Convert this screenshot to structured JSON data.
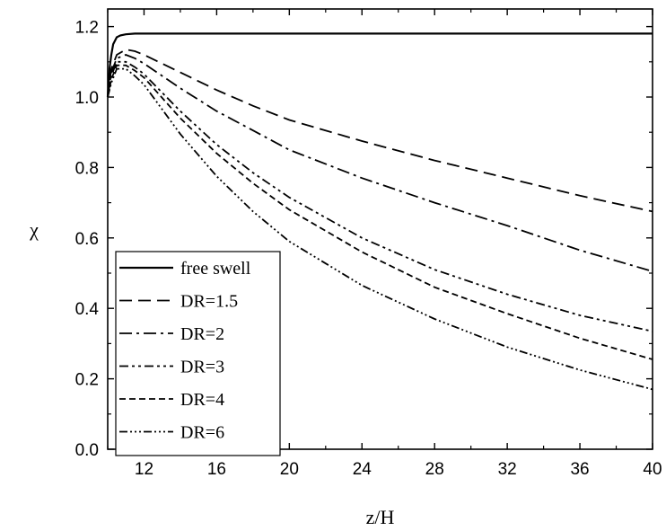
{
  "chart_data": {
    "type": "line",
    "title": "",
    "xlabel": "z/H",
    "ylabel": "χ",
    "xlim": [
      10,
      40
    ],
    "ylim": [
      0.0,
      1.25
    ],
    "xticks": [
      12,
      16,
      20,
      24,
      28,
      32,
      36,
      40
    ],
    "xtick_labels": [
      "12",
      "16",
      "20",
      "24",
      "28",
      "32",
      "36",
      "40"
    ],
    "yticks": [
      0.0,
      0.2,
      0.4,
      0.6,
      0.8,
      1.0,
      1.2
    ],
    "ytick_labels": [
      "0.0",
      "0.2",
      "0.4",
      "0.6",
      "0.8",
      "1.0",
      "1.2"
    ],
    "grid": false,
    "legend_position": "bottom-left",
    "series": [
      {
        "name": "free swell",
        "dash": "solid",
        "x": [
          10.0,
          10.1,
          10.2,
          10.3,
          10.5,
          10.7,
          11.0,
          11.5,
          12,
          16,
          20,
          24,
          28,
          32,
          36,
          40
        ],
        "y": [
          1.0,
          1.08,
          1.12,
          1.15,
          1.17,
          1.175,
          1.178,
          1.18,
          1.18,
          1.18,
          1.18,
          1.18,
          1.18,
          1.18,
          1.18,
          1.18
        ]
      },
      {
        "name": "DR=1.5",
        "dash": "dashed",
        "x": [
          10.0,
          10.2,
          10.5,
          11.0,
          11.5,
          12,
          14,
          16,
          18,
          20,
          24,
          28,
          32,
          36,
          40
        ],
        "y": [
          1.0,
          1.08,
          1.12,
          1.135,
          1.13,
          1.12,
          1.07,
          1.02,
          0.975,
          0.935,
          0.875,
          0.82,
          0.77,
          0.72,
          0.675
        ]
      },
      {
        "name": "DR=2",
        "dash": "dash-dot",
        "x": [
          10.0,
          10.2,
          10.5,
          11.0,
          11.5,
          12,
          14,
          16,
          18,
          20,
          24,
          28,
          32,
          36,
          40
        ],
        "y": [
          1.0,
          1.07,
          1.11,
          1.12,
          1.11,
          1.095,
          1.025,
          0.96,
          0.905,
          0.85,
          0.77,
          0.7,
          0.635,
          0.565,
          0.505
        ]
      },
      {
        "name": "DR=3",
        "dash": "dash-dot-dot",
        "x": [
          10.0,
          10.2,
          10.5,
          11.0,
          11.5,
          12,
          14,
          16,
          18,
          20,
          24,
          28,
          32,
          36,
          40
        ],
        "y": [
          1.0,
          1.06,
          1.1,
          1.1,
          1.085,
          1.065,
          0.96,
          0.865,
          0.785,
          0.715,
          0.6,
          0.51,
          0.44,
          0.38,
          0.335
        ]
      },
      {
        "name": "DR=4",
        "dash": "short-dash",
        "x": [
          10.0,
          10.2,
          10.5,
          11.0,
          11.5,
          12,
          14,
          16,
          18,
          20,
          24,
          28,
          32,
          36,
          40
        ],
        "y": [
          1.0,
          1.05,
          1.09,
          1.09,
          1.075,
          1.055,
          0.94,
          0.84,
          0.755,
          0.68,
          0.56,
          0.46,
          0.385,
          0.315,
          0.255
        ]
      },
      {
        "name": "DR=6",
        "dash": "dash-dot-dot-dot",
        "x": [
          10.0,
          10.2,
          10.5,
          11.0,
          11.5,
          12,
          14,
          16,
          18,
          20,
          24,
          28,
          32,
          36,
          40
        ],
        "y": [
          1.0,
          1.04,
          1.08,
          1.08,
          1.06,
          1.035,
          0.895,
          0.775,
          0.675,
          0.59,
          0.465,
          0.37,
          0.29,
          0.225,
          0.17
        ]
      }
    ]
  }
}
